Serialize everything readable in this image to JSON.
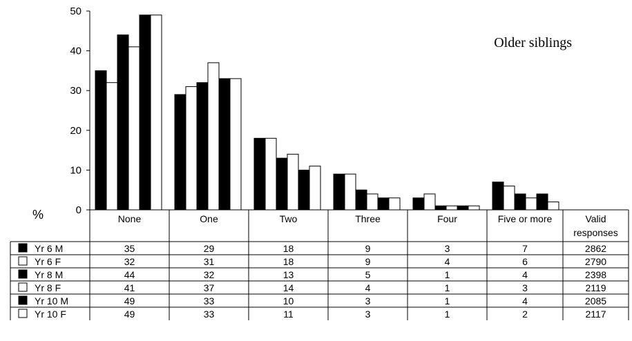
{
  "chart_data": {
    "type": "bar",
    "title": "Older siblings",
    "ylabel": "%",
    "ylim": [
      0,
      50
    ],
    "yticks": [
      0,
      10,
      20,
      30,
      40,
      50
    ],
    "categories": [
      "None",
      "One",
      "Two",
      "Three",
      "Four",
      "Five or more"
    ],
    "extra_column_header": [
      "Valid",
      "responses"
    ],
    "series": [
      {
        "name": "Yr 6 M",
        "fill": "#000000",
        "values": [
          35,
          29,
          18,
          9,
          3,
          7
        ],
        "valid_responses": "2862"
      },
      {
        "name": "Yr 6 F",
        "fill": "#ffffff",
        "values": [
          32,
          31,
          18,
          9,
          4,
          6
        ],
        "valid_responses": "2790"
      },
      {
        "name": "Yr 8 M",
        "fill": "#000000",
        "values": [
          44,
          32,
          13,
          5,
          1,
          4
        ],
        "valid_responses": "2398"
      },
      {
        "name": "Yr 8 F",
        "fill": "#ffffff",
        "values": [
          41,
          37,
          14,
          4,
          1,
          3
        ],
        "valid_responses": "2119"
      },
      {
        "name": "Yr 10 M",
        "fill": "#000000",
        "values": [
          49,
          33,
          10,
          3,
          1,
          4
        ],
        "valid_responses": "2085"
      },
      {
        "name": "Yr 10 F",
        "fill": "#ffffff",
        "values": [
          49,
          33,
          11,
          3,
          1,
          2
        ],
        "valid_responses": "2117"
      }
    ],
    "grid": false,
    "legend": "table-left"
  }
}
